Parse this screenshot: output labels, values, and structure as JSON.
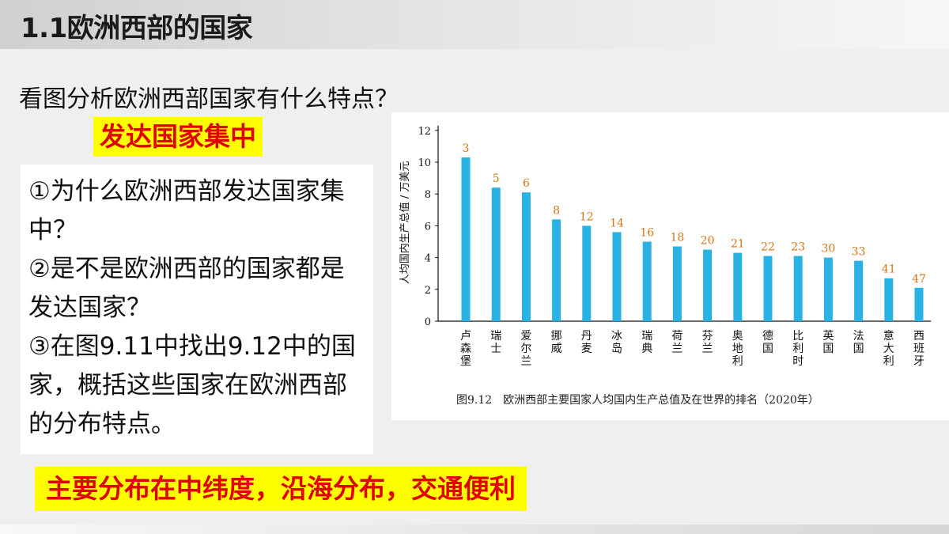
{
  "slide": {
    "title": "1.1欧洲西部的国家",
    "question": "看图分析欧洲西部国家有什么特点？",
    "answer_1": "发达国家集中",
    "questions": [
      "①为什么欧洲西部发达国家集中？",
      "②是不是欧洲西部的国家都是发达国家？",
      "③在图9.11中找出9.12中的国家，概括这些国家在欧洲西部的分布特点。"
    ],
    "answer_2": "主要分布在中纬度，沿海分布，交通便利"
  },
  "figure": {
    "number": "图9.12",
    "caption": "欧洲西部主要国家人均国内生产总值及在世界的排名（2020年）"
  },
  "chart_data": {
    "type": "bar",
    "title": "",
    "xlabel": "",
    "ylabel": "人均国内生产总值 / 万美元",
    "ylim": [
      0,
      12
    ],
    "yticks": [
      0,
      2,
      4,
      6,
      8,
      10,
      12
    ],
    "grid": false,
    "categories": [
      "卢森堡",
      "瑞士",
      "爱尔兰",
      "挪威",
      "丹麦",
      "冰岛",
      "瑞典",
      "荷兰",
      "芬兰",
      "奥地利",
      "德国",
      "比利时",
      "英国",
      "法国",
      "意大利",
      "西班牙"
    ],
    "values": [
      10.3,
      8.4,
      8.1,
      6.4,
      6.0,
      5.6,
      5.0,
      4.7,
      4.5,
      4.3,
      4.1,
      4.1,
      4.0,
      3.8,
      2.7,
      2.1
    ],
    "rank_labels": [
      "3",
      "5",
      "6",
      "8",
      "12",
      "14",
      "16",
      "18",
      "20",
      "21",
      "22",
      "23",
      "30",
      "33",
      "41",
      "47"
    ],
    "colors": {
      "bar": "#29b3e4",
      "rank_label": "#d77414",
      "axis": "#111111"
    }
  }
}
